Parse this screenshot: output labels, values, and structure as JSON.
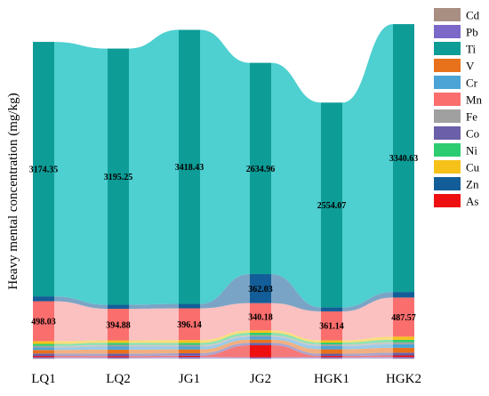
{
  "chart_data": {
    "type": "area",
    "chart_subtype": "stacked alluvial / sankey-style stacked bars",
    "title": "",
    "xlabel": "",
    "ylabel": "Heavy mental concentration (mg/kg)",
    "categories": [
      "LQ1",
      "LQ2",
      "JG1",
      "JG2",
      "HGK1",
      "HGK2"
    ],
    "legend_position": "right",
    "grid": false,
    "series": [
      {
        "name": "Cd",
        "color": "#A88F82",
        "values": [
          3,
          3,
          3,
          3,
          3,
          3
        ]
      },
      {
        "name": "Pb",
        "color": "#7B68C8",
        "values": [
          15,
          14,
          17,
          14,
          15,
          16
        ]
      },
      {
        "name": "Ti",
        "color": "#0E9C97",
        "values": [
          3174.35,
          3195.25,
          3418.43,
          2634.96,
          2554.07,
          3340.63
        ]
      },
      {
        "name": "V",
        "color": "#E8711C",
        "values": [
          45,
          50,
          48,
          40,
          55,
          60
        ]
      },
      {
        "name": "Cr",
        "color": "#4BA3D6",
        "values": [
          30,
          38,
          35,
          35,
          40,
          45
        ]
      },
      {
        "name": "Mn",
        "color": "#FA6E6E",
        "values": [
          498.03,
          394.88,
          396.14,
          340.18,
          361.14,
          487.57
        ]
      },
      {
        "name": "Fe",
        "color": "#A0A0A0",
        "values": [
          20,
          22,
          22,
          20,
          22,
          25
        ]
      },
      {
        "name": "Co",
        "color": "#6A5FA8",
        "values": [
          30,
          30,
          32,
          30,
          28,
          35
        ]
      },
      {
        "name": "Ni",
        "color": "#2ECC71",
        "values": [
          25,
          25,
          24,
          30,
          22,
          30
        ]
      },
      {
        "name": "Cu",
        "color": "#F6C21A",
        "values": [
          35,
          30,
          35,
          30,
          28,
          40
        ]
      },
      {
        "name": "Zn",
        "color": "#135E98",
        "values": [
          60,
          50,
          55,
          362.03,
          50,
          70
        ]
      },
      {
        "name": "As",
        "color": "#EE1010",
        "values": [
          15,
          15,
          15,
          150,
          15,
          20
        ]
      }
    ],
    "labels": [
      {
        "category": "LQ1",
        "series": "Ti",
        "text": "3174.35"
      },
      {
        "category": "LQ1",
        "series": "Mn",
        "text": "498.03"
      },
      {
        "category": "LQ2",
        "series": "Ti",
        "text": "3195.25"
      },
      {
        "category": "LQ2",
        "series": "Mn",
        "text": "394.88"
      },
      {
        "category": "JG1",
        "series": "Ti",
        "text": "3418.43"
      },
      {
        "category": "JG1",
        "series": "Mn",
        "text": "396.14"
      },
      {
        "category": "JG2",
        "series": "Ti",
        "text": "2634.96"
      },
      {
        "category": "JG2",
        "series": "Zn",
        "text": "362.03"
      },
      {
        "category": "JG2",
        "series": "Mn",
        "text": "340.18"
      },
      {
        "category": "HGK1",
        "series": "Ti",
        "text": "2554.07"
      },
      {
        "category": "HGK1",
        "series": "Mn",
        "text": "361.14"
      },
      {
        "category": "HGK2",
        "series": "Ti",
        "text": "3340.63"
      },
      {
        "category": "HGK2",
        "series": "Mn",
        "text": "487.57"
      }
    ],
    "stack_order_top_to_bottom": [
      "Ti",
      "Zn",
      "Mn",
      "Cu",
      "Ni",
      "Fe",
      "Cr",
      "V",
      "Co",
      "As",
      "Pb",
      "Cd"
    ]
  }
}
